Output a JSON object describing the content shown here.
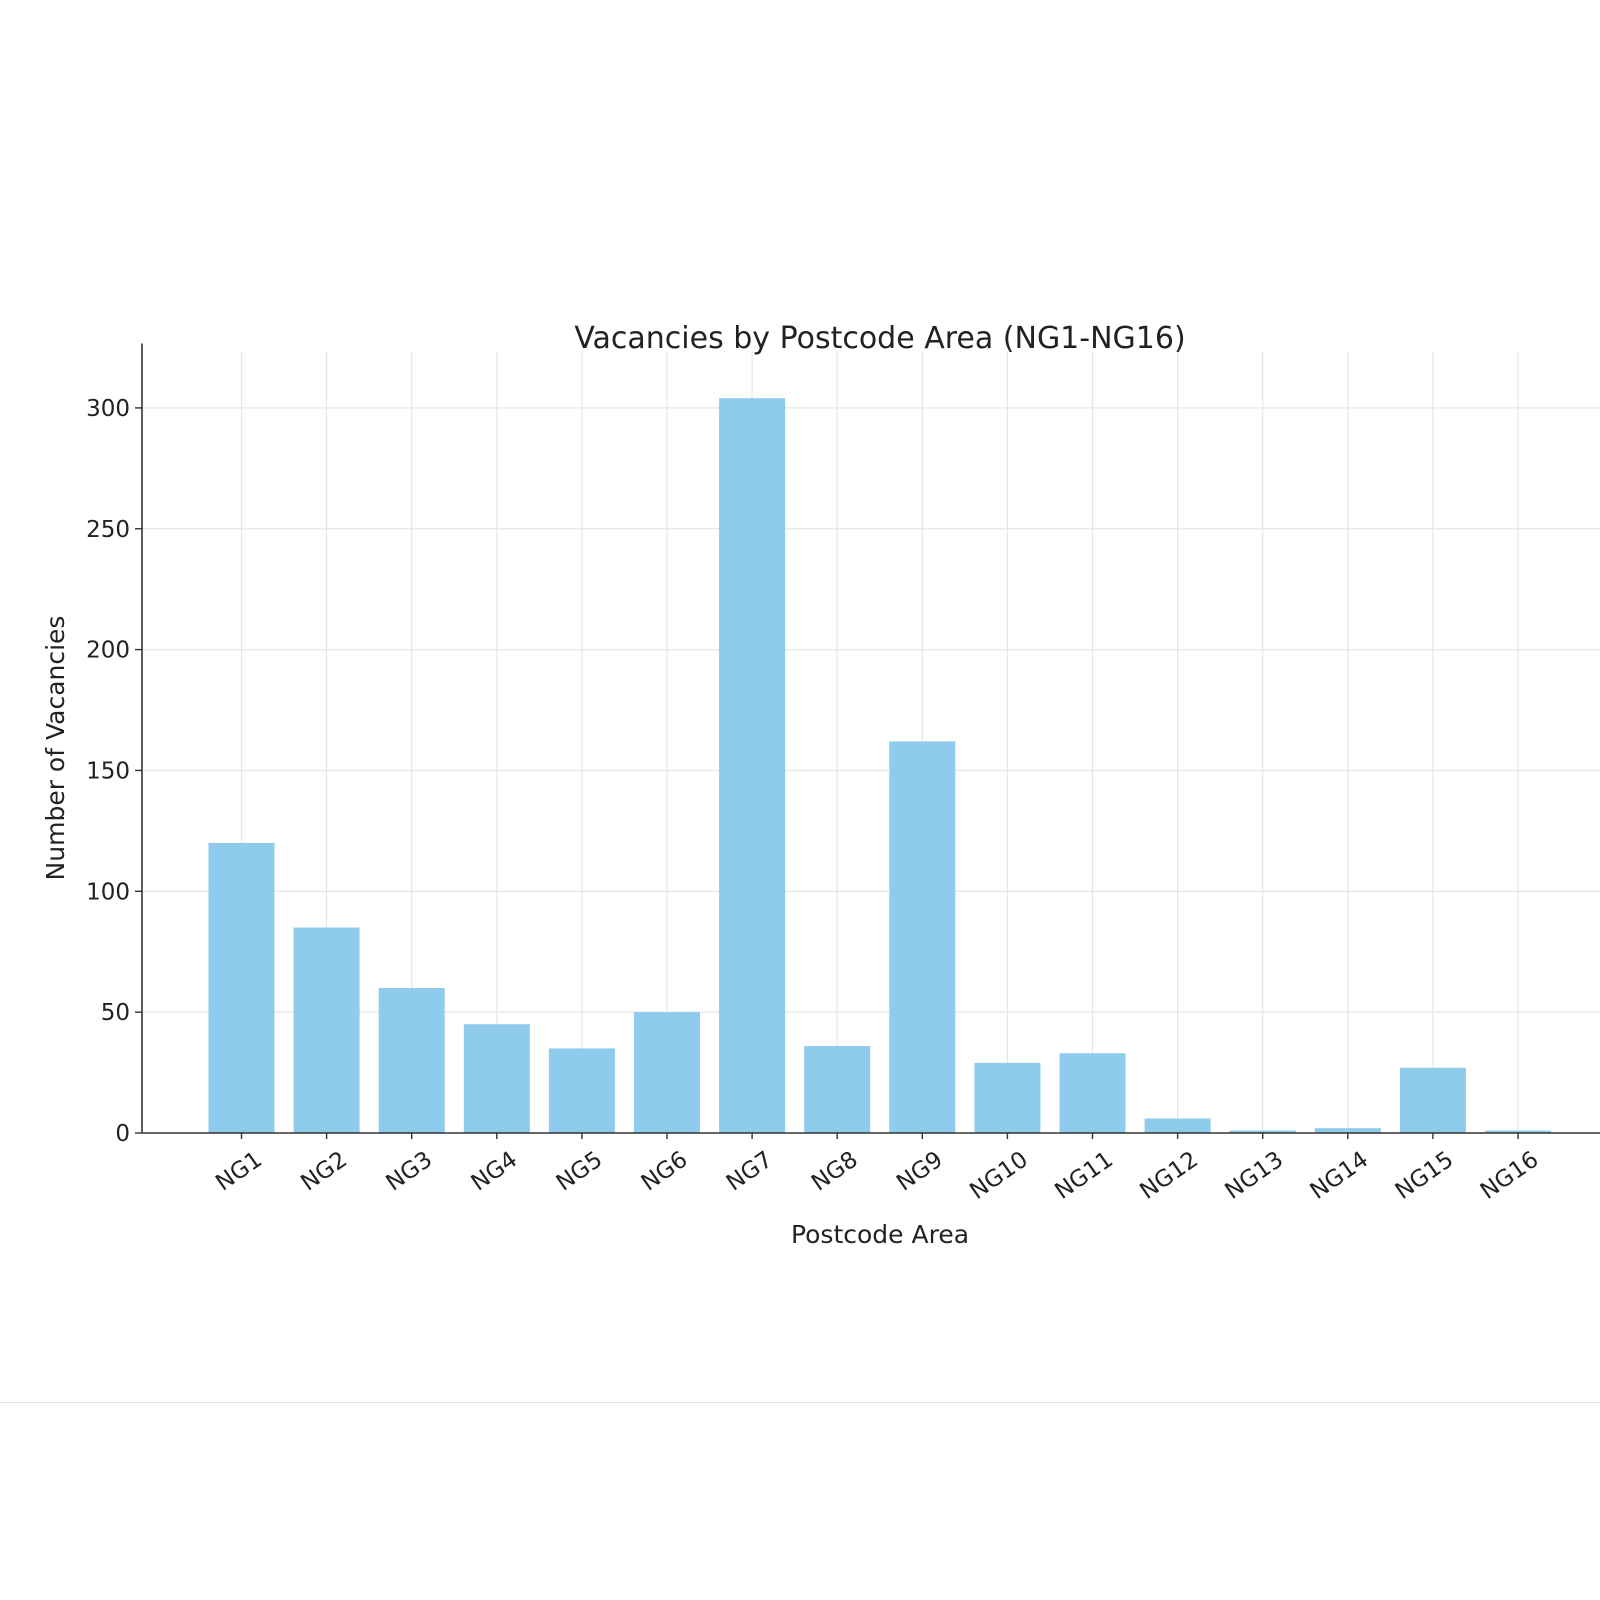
{
  "chart_data": {
    "type": "bar",
    "title": "Vacancies by Postcode Area (NG1-NG16)",
    "xlabel": "Postcode Area",
    "ylabel": "Number of Vacancies",
    "categories": [
      "NG1",
      "NG2",
      "NG3",
      "NG4",
      "NG5",
      "NG6",
      "NG7",
      "NG8",
      "NG9",
      "NG10",
      "NG11",
      "NG12",
      "NG13",
      "NG14",
      "NG15",
      "NG16"
    ],
    "values": [
      120,
      85,
      60,
      45,
      35,
      50,
      304,
      36,
      162,
      29,
      33,
      6,
      1,
      2,
      27,
      1
    ],
    "ylim": [
      0,
      320
    ],
    "yticks": [
      0,
      50,
      100,
      150,
      200,
      250,
      300
    ],
    "grid": true,
    "bar_color": "#8ecbed",
    "legend": "none"
  }
}
